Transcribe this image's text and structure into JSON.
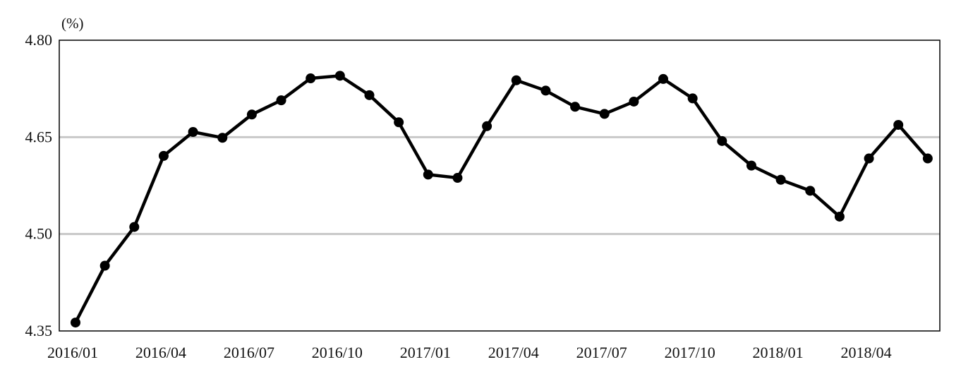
{
  "chart_data": {
    "type": "line",
    "unit_label": "(%)",
    "y_ticks": [
      "4.35",
      "4.50",
      "4.65",
      "4.80"
    ],
    "y_tick_values": [
      4.35,
      4.5,
      4.65,
      4.8
    ],
    "ylim": [
      4.35,
      4.8
    ],
    "x_tick_labels": [
      "2016/01",
      "2016/04",
      "2016/07",
      "2016/10",
      "2017/01",
      "2017/04",
      "2017/07",
      "2017/10",
      "2018/01",
      "2018/04"
    ],
    "x": [
      "2016/01",
      "2016/02",
      "2016/03",
      "2016/04",
      "2016/05",
      "2016/06",
      "2016/07",
      "2016/08",
      "2016/09",
      "2016/10",
      "2016/11",
      "2016/12",
      "2017/01",
      "2017/02",
      "2017/03",
      "2017/04",
      "2017/05",
      "2017/06",
      "2017/07",
      "2017/08",
      "2017/09",
      "2017/10",
      "2017/11",
      "2017/12",
      "2018/01",
      "2018/02",
      "2018/03",
      "2018/04",
      "2018/05",
      "2018/06"
    ],
    "values": [
      4.363,
      4.451,
      4.511,
      4.621,
      4.658,
      4.649,
      4.685,
      4.707,
      4.741,
      4.745,
      4.715,
      4.673,
      4.592,
      4.587,
      4.667,
      4.738,
      4.722,
      4.697,
      4.686,
      4.705,
      4.74,
      4.71,
      4.644,
      4.606,
      4.584,
      4.567,
      4.527,
      4.617,
      4.669,
      4.617
    ],
    "gridlines_at": [
      4.5,
      4.65
    ],
    "grid": true,
    "legend": false,
    "colors": {
      "line": "#000000",
      "grid": "#c8c8c8",
      "frame": "#000000"
    }
  }
}
